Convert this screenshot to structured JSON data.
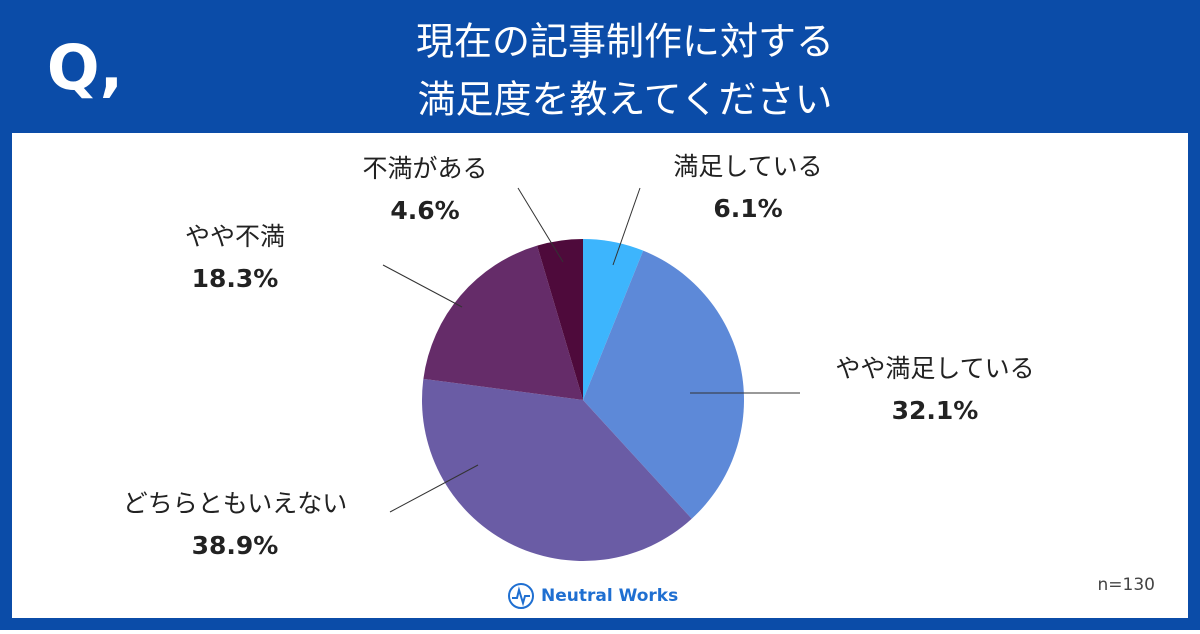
{
  "badge": "Q,",
  "chart_data": {
    "type": "pie",
    "title": [
      "現在の記事制作に対する",
      "満足度を教えてください"
    ],
    "categories": [
      "満足している",
      "やや満足している",
      "どちらともいえない",
      "やや不満",
      "不満がある"
    ],
    "values": [
      6.1,
      32.1,
      38.9,
      18.3,
      4.6
    ],
    "value_labels": [
      "6.1%",
      "32.1%",
      "38.9%",
      "18.3%",
      "4.6%"
    ],
    "colors": [
      "#3db5fd",
      "#5d89d8",
      "#6a5ca5",
      "#652c69",
      "#4e0a3b"
    ],
    "note": "n=130"
  },
  "footer": {
    "logo": "Neutral Works"
  }
}
